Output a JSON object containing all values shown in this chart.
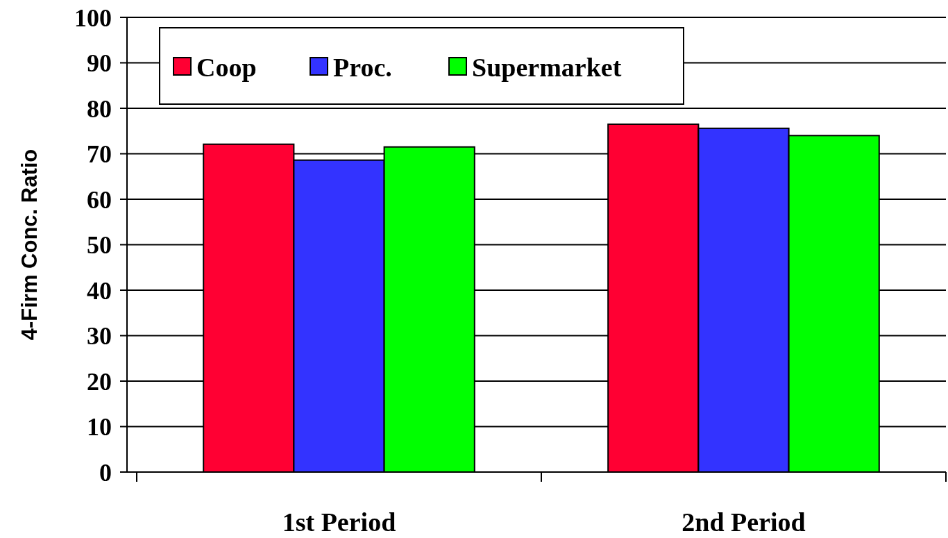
{
  "chart_data": {
    "type": "bar",
    "ylabel": "4-Firm Conc. Ratio",
    "categories": [
      "1st Period",
      "2nd Period"
    ],
    "series": [
      {
        "name": "Coop",
        "color": "#ff0033",
        "values": [
          72.1,
          76.5
        ]
      },
      {
        "name": "Proc.",
        "color": "#3333ff",
        "values": [
          68.6,
          75.6
        ]
      },
      {
        "name": "Supermarket",
        "color": "#00ff00",
        "values": [
          71.5,
          74.0
        ]
      }
    ],
    "ylim": [
      0,
      100
    ],
    "yticks": [
      0,
      10,
      20,
      30,
      40,
      50,
      60,
      70,
      80,
      90,
      100
    ],
    "grid": "y",
    "legend": "top left"
  }
}
